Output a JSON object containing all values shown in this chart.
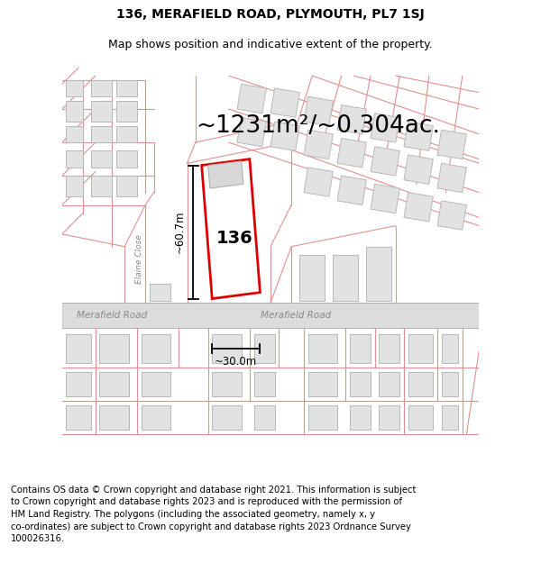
{
  "title": "136, MERAFIELD ROAD, PLYMOUTH, PL7 1SJ",
  "subtitle": "Map shows position and indicative extent of the property.",
  "area_text": "~1231m²/~0.304ac.",
  "house_number": "136",
  "dim_height": "~60.7m",
  "dim_width": "~30.0m",
  "road_label_left": "Merafield Road",
  "road_label_right": "Merafield Road",
  "elaine_close_label": "Elaine Close",
  "footer_text": "Contains OS data © Crown copyright and database right 2021. This information is subject\nto Crown copyright and database rights 2023 and is reproduced with the permission of\nHM Land Registry. The polygons (including the associated geometry, namely x, y\nco-ordinates) are subject to Crown copyright and database rights 2023 Ordnance Survey\n100026316.",
  "background_color": "#ffffff",
  "map_bg": "#f7f7f7",
  "building_fill": "#e2e2e2",
  "building_edge": "#b8b8b8",
  "plot_outline_color": "#dd0000",
  "dim_line_color": "#000000",
  "text_color": "#000000",
  "road_text_color": "#888888",
  "street_color": "#e09090",
  "title_fontsize": 10,
  "subtitle_fontsize": 9,
  "area_fontsize": 19,
  "footer_fontsize": 7.2,
  "map_xlim": [
    0,
    100
  ],
  "map_ylim": [
    0,
    100
  ]
}
